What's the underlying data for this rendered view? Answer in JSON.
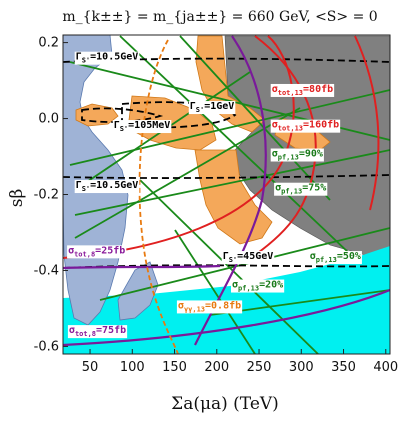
{
  "chart_data": {
    "type": "contour",
    "title": "m_{k±±} = m_{ja±±} = 660 GeV, <S> = 0",
    "xlabel": "Σa(μa) (TeV)",
    "ylabel": "sβ",
    "xlim": [
      18,
      405
    ],
    "ylim": [
      -0.62,
      0.22
    ],
    "x_ticks": [
      "50",
      "100",
      "150",
      "200",
      "250",
      "300",
      "350",
      "400"
    ],
    "y_ticks": [
      "0.2",
      "0.0",
      "-0.2",
      "-0.4",
      "-0.6"
    ],
    "x_tick_values": [
      50,
      100,
      150,
      200,
      250,
      300,
      350,
      400
    ],
    "y_tick_values": [
      0.2,
      0.0,
      -0.2,
      -0.4,
      -0.6
    ],
    "regions": [
      {
        "name": "gray",
        "color": "#808080"
      },
      {
        "name": "orange",
        "color": "#f4a85a"
      },
      {
        "name": "blue",
        "color": "#9fb3d6"
      },
      {
        "name": "cyan",
        "color": "#00f0f0"
      }
    ],
    "annotations": [
      {
        "text": "Γ",
        "sub": "S'",
        "rest": "=10.5GeV",
        "color": "#000000",
        "x": 33,
        "y": 0.155
      },
      {
        "text": "Γ",
        "sub": "S'",
        "rest": "=1GeV",
        "color": "#000000",
        "x": 168,
        "y": 0.025
      },
      {
        "text": "Γ",
        "sub": "S'",
        "rest": "=105MeV",
        "color": "#000000",
        "x": 78,
        "y": -0.025
      },
      {
        "text": "Γ",
        "sub": "S'",
        "rest": "=10.5GeV",
        "color": "#000000",
        "x": 33,
        "y": -0.183
      },
      {
        "text": "Γ",
        "sub": "S'",
        "rest": "=45GeV",
        "color": "#000000",
        "x": 207,
        "y": -0.37
      },
      {
        "text": "σ",
        "sub": "tot,13",
        "rest": "=80fb",
        "color": "#e02020",
        "x": 265,
        "y": 0.07
      },
      {
        "text": "σ",
        "sub": "tot,13",
        "rest": "=160fb",
        "color": "#e02020",
        "x": 265,
        "y": -0.024
      },
      {
        "text": "σ",
        "sub": "pf,13",
        "rest": "=90%",
        "color": "#1a7a1a",
        "x": 265,
        "y": -0.1
      },
      {
        "text": "σ",
        "sub": "pf,13",
        "rest": "=75%",
        "color": "#1a7a1a",
        "x": 269,
        "y": -0.19
      },
      {
        "text": "σ",
        "sub": "pf,13",
        "rest": "=50%",
        "color": "#1a7a1a",
        "x": 310,
        "y": -0.37
      },
      {
        "text": "σ",
        "sub": "pf,13",
        "rest": "=20%",
        "color": "#1a7a1a",
        "x": 218,
        "y": -0.445
      },
      {
        "text": "σ",
        "sub": "tot,8",
        "rest": "=25fb",
        "color": "#8a1a9a",
        "x": 24,
        "y": -0.355
      },
      {
        "text": "σ",
        "sub": "γγ,13",
        "rest": "=0.8fb",
        "color": "#e87a10",
        "x": 154,
        "y": -0.5
      },
      {
        "text": "σ",
        "sub": "tot,8",
        "rest": "=75fb",
        "color": "#8a1a9a",
        "x": 25,
        "y": -0.565
      }
    ]
  }
}
